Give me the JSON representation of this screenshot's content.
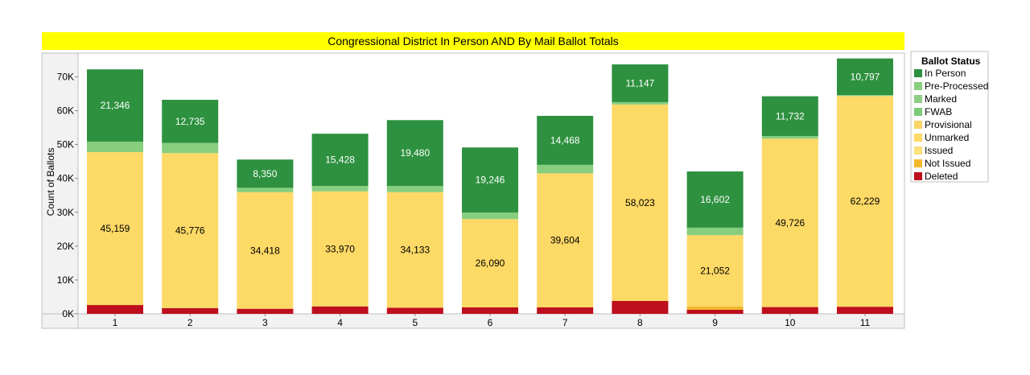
{
  "chart_data": {
    "type": "bar",
    "stacked": true,
    "title": "Congressional District In Person AND By Mail Ballot Totals",
    "ylabel": "Count of Ballots",
    "xlabel": "",
    "ylim": [
      0,
      77000
    ],
    "yticks": [
      {
        "value": 0,
        "label": "0K"
      },
      {
        "value": 10000,
        "label": "10K"
      },
      {
        "value": 20000,
        "label": "20K"
      },
      {
        "value": 30000,
        "label": "30K"
      },
      {
        "value": 40000,
        "label": "40K"
      },
      {
        "value": 50000,
        "label": "50K"
      },
      {
        "value": 60000,
        "label": "60K"
      },
      {
        "value": 70000,
        "label": "70K"
      }
    ],
    "categories": [
      "1",
      "2",
      "3",
      "4",
      "5",
      "6",
      "7",
      "8",
      "9",
      "10",
      "11"
    ],
    "legend": {
      "title": "Ballot Status",
      "position": "right"
    },
    "series": [
      {
        "name": "Deleted",
        "color": "#BD0F1D",
        "values": [
          2600,
          1700,
          1500,
          2200,
          1800,
          1900,
          1900,
          3800,
          1200,
          2000,
          2100
        ],
        "labels": []
      },
      {
        "name": "Not Issued",
        "color": "#F2B82A",
        "values": [
          0,
          0,
          0,
          0,
          0,
          0,
          0,
          0,
          1000,
          0,
          0
        ],
        "labels": []
      },
      {
        "name": "Issued",
        "color": "#FCE07D",
        "values": [
          0,
          0,
          0,
          0,
          0,
          0,
          0,
          0,
          0,
          0,
          0
        ],
        "labels": []
      },
      {
        "name": "Unmarked",
        "color": "#FDD966",
        "values": [
          45159,
          45776,
          34418,
          33970,
          34133,
          26090,
          39604,
          58023,
          21052,
          49726,
          62229
        ],
        "labels": [
          "45,159",
          "45,776",
          "34,418",
          "33,970",
          "34,133",
          "26,090",
          "39,604",
          "58,023",
          "21,052",
          "49,726",
          "62,229"
        ]
      },
      {
        "name": "Provisional",
        "color": "#FAD469",
        "values": [
          0,
          0,
          0,
          0,
          0,
          0,
          0,
          0,
          0,
          0,
          0
        ],
        "labels": []
      },
      {
        "name": "FWAB",
        "color": "#7CCB79",
        "values": [
          0,
          0,
          0,
          0,
          0,
          0,
          0,
          0,
          0,
          0,
          0
        ],
        "labels": []
      },
      {
        "name": "Marked",
        "color": "#8DCF83",
        "values": [
          0,
          0,
          0,
          0,
          0,
          0,
          0,
          0,
          0,
          0,
          0
        ],
        "labels": []
      },
      {
        "name": "Pre-Processed",
        "color": "#88CE7F",
        "values": [
          3100,
          3000,
          1300,
          1600,
          1800,
          1900,
          2500,
          700,
          2200,
          800,
          300
        ],
        "labels": []
      },
      {
        "name": "In Person",
        "color": "#2E9140",
        "values": [
          21346,
          12735,
          8350,
          15428,
          19480,
          19246,
          14468,
          11147,
          16602,
          11732,
          10797
        ],
        "labels": [
          "21,346",
          "12,735",
          "8,350",
          "15,428",
          "19,480",
          "19,246",
          "14,468",
          "11,147",
          "16,602",
          "11,732",
          "10,797"
        ]
      }
    ],
    "legend_order": [
      "In Person",
      "Pre-Processed",
      "Marked",
      "FWAB",
      "Provisional",
      "Unmarked",
      "Issued",
      "Not Issued",
      "Deleted"
    ]
  }
}
